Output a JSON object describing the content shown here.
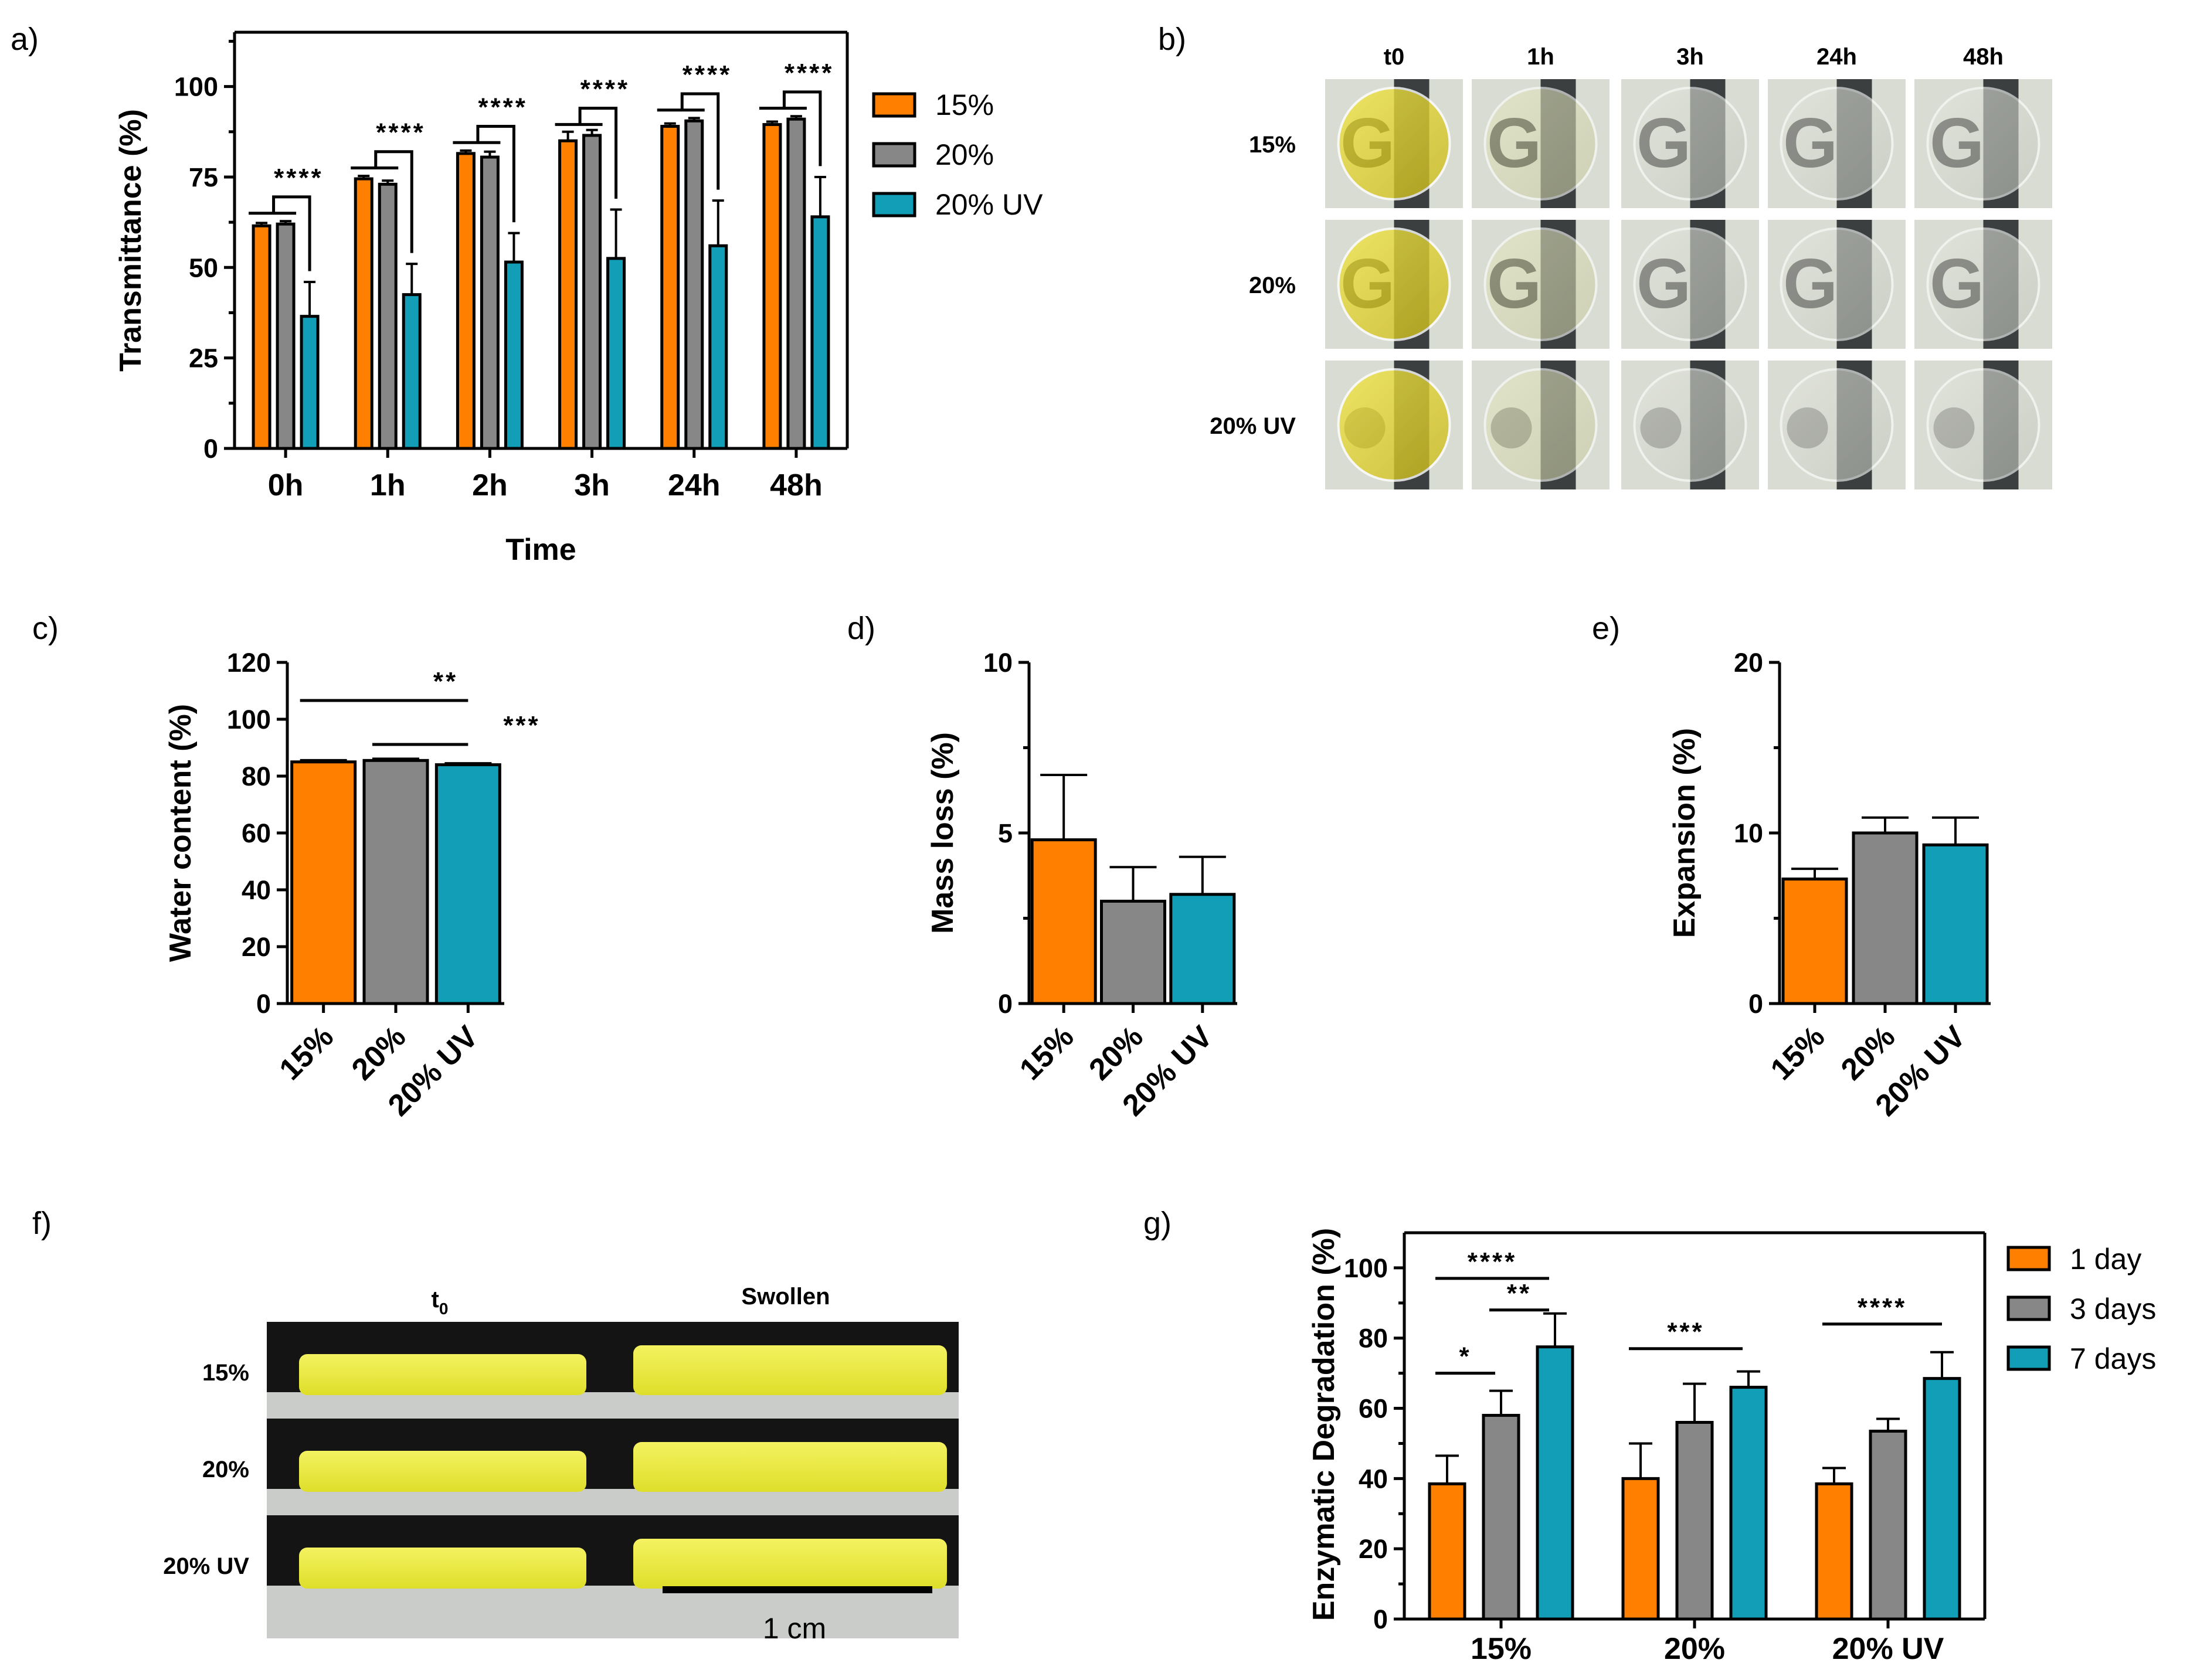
{
  "colors": {
    "s15": "#ff7f00",
    "s20": "#878787",
    "s20uv": "#139eb8"
  },
  "panels": {
    "a": "a)",
    "b": "b)",
    "c": "c)",
    "d": "d)",
    "e": "e)",
    "f": "f)",
    "g": "g)"
  },
  "photo_b": {
    "columns": [
      "t0",
      "1h",
      "3h",
      "24h",
      "48h"
    ],
    "rows": [
      "15%",
      "20%",
      "20% UV"
    ],
    "logo_letter": "G"
  },
  "photo_f": {
    "col_t0": "t",
    "col_t0_sub": "0",
    "col_swollen": "Swollen",
    "rows": [
      "15%",
      "20%",
      "20% UV"
    ],
    "scale_label": "1 cm"
  },
  "chart_data": [
    {
      "id": "a",
      "type": "bar",
      "xlabel": "Time",
      "ylabel": "Transmittance (%)",
      "ylim": [
        0,
        115
      ],
      "yticks": [
        0,
        25,
        50,
        75,
        100
      ],
      "categories": [
        "0h",
        "1h",
        "2h",
        "3h",
        "24h",
        "48h"
      ],
      "series": [
        {
          "name": "15%",
          "color": "#ff7f00",
          "values": [
            61.5,
            74.5,
            81.5,
            85,
            89,
            89.5
          ],
          "errors": [
            0.8,
            0.8,
            0.8,
            2.5,
            0.8,
            0.8
          ]
        },
        {
          "name": "20%",
          "color": "#878787",
          "values": [
            62,
            73,
            80.5,
            86.5,
            90.5,
            91
          ],
          "errors": [
            0.8,
            1,
            1.5,
            1.5,
            0.8,
            0.8
          ]
        },
        {
          "name": "20% UV",
          "color": "#139eb8",
          "values": [
            36.5,
            42.5,
            51.5,
            52.5,
            56,
            64
          ],
          "errors": [
            9.5,
            8.5,
            8,
            13.5,
            12.5,
            11
          ]
        }
      ],
      "significance": [
        "****",
        "****",
        "****",
        "****",
        "****",
        "****"
      ],
      "legend": [
        "15%",
        "20%",
        "20% UV"
      ]
    },
    {
      "id": "c",
      "type": "bar",
      "ylabel": "Water content (%)",
      "ylim": [
        0,
        120
      ],
      "yticks": [
        0,
        20,
        40,
        60,
        80,
        100,
        120
      ],
      "categories": [
        "15%",
        "20%",
        "20% UV"
      ],
      "values": [
        85,
        85.5,
        84
      ],
      "errors": [
        0.6,
        0.6,
        0.5
      ],
      "colors": [
        "#ff7f00",
        "#878787",
        "#139eb8"
      ],
      "significance": [
        {
          "from": 0,
          "to": 2,
          "label": "**"
        },
        {
          "from": 1,
          "to": 2,
          "label": "***"
        }
      ]
    },
    {
      "id": "d",
      "type": "bar",
      "ylabel": "Mass loss (%)",
      "ylim": [
        0,
        10
      ],
      "yticks": [
        0,
        5,
        10
      ],
      "categories": [
        "15%",
        "20%",
        "20% UV"
      ],
      "values": [
        4.8,
        3,
        3.2
      ],
      "errors": [
        1.9,
        1,
        1.1
      ],
      "colors": [
        "#ff7f00",
        "#878787",
        "#139eb8"
      ]
    },
    {
      "id": "e",
      "type": "bar",
      "ylabel": "Expansion (%)",
      "ylim": [
        0,
        20
      ],
      "yticks": [
        0,
        10,
        20
      ],
      "categories": [
        "15%",
        "20%",
        "20% UV"
      ],
      "values": [
        7.3,
        10,
        9.3
      ],
      "errors": [
        0.6,
        0.9,
        1.6
      ],
      "colors": [
        "#ff7f00",
        "#878787",
        "#139eb8"
      ]
    },
    {
      "id": "g",
      "type": "bar",
      "ylabel": "Enzymatic Degradation (%)",
      "ylim": [
        0,
        110
      ],
      "yticks": [
        0,
        20,
        40,
        60,
        80,
        100
      ],
      "categories": [
        "15%",
        "20%",
        "20% UV"
      ],
      "series": [
        {
          "name": "1 day",
          "color": "#ff7f00",
          "values": [
            38.5,
            40,
            38.5
          ],
          "errors": [
            8,
            10,
            4.5
          ]
        },
        {
          "name": "3 days",
          "color": "#878787",
          "values": [
            58,
            56,
            53.5
          ],
          "errors": [
            7,
            11,
            3.5
          ]
        },
        {
          "name": "7 days",
          "color": "#139eb8",
          "values": [
            77.5,
            66,
            68.5
          ],
          "errors": [
            9.5,
            4.5,
            7.5
          ]
        }
      ],
      "significance": [
        {
          "group": 0,
          "from": 0,
          "to": 2,
          "label": "****"
        },
        {
          "group": 0,
          "from": 1,
          "to": 2,
          "label": "**"
        },
        {
          "group": 0,
          "from": 0,
          "to": 1,
          "label": "*"
        },
        {
          "group": 1,
          "from": 0,
          "to": 2,
          "label": "***"
        },
        {
          "group": 2,
          "from": 0,
          "to": 2,
          "label": "****"
        }
      ],
      "legend": [
        "1 day",
        "3 days",
        "7 days"
      ]
    }
  ]
}
